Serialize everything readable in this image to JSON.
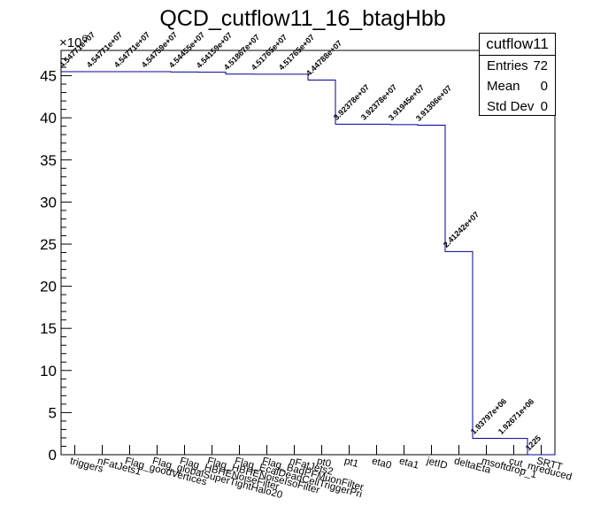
{
  "chart_data": {
    "type": "bar",
    "title": "QCD_cutflow11_16_btagHbb",
    "y_exponent_label": "×10",
    "y_exponent_power": "6",
    "ylim": [
      0,
      48
    ],
    "yticks": [
      "0",
      "5",
      "10",
      "15",
      "20",
      "25",
      "30",
      "35",
      "40",
      "45"
    ],
    "categories": [
      "triggers",
      "nFatJets1",
      "Flag_goodVertices",
      "Flag_globalSuperTightHalo2016Filter",
      "Flag_HBHENoiseFilter",
      "Flag_HBHENoiseIsoFilter",
      "Flag_EcalDeadCellTriggerPrimitiveFilter",
      "Flag_BadPFMuonFilter",
      "nFatJets2",
      "pt0",
      "pt1",
      "eta0",
      "eta1",
      "jetID",
      "deltaEta",
      "msoftdrop_1",
      "cut_mreduced",
      "SRTT"
    ],
    "category_labels": [
      "triggers",
      "nFatJets1",
      "Flag_goodVertices",
      "Flag_globalSuperTightHalo20",
      "Flag_HBHENoiseFilter",
      "Flag_HBHENoiseIsoFilter",
      "Flag_EcalDeadCellTriggerPri",
      "Flag_BadPFMuonFilter",
      "nFatJets2",
      "pt0",
      "pt1",
      "eta0",
      "eta1",
      "jetID",
      "deltaEta",
      "msoftdrop_1",
      "cut_mreduced",
      "SRTT"
    ],
    "values": [
      45477100,
      45477100,
      45477100,
      45475900,
      45445500,
      45415900,
      45186700,
      45176500,
      45176500,
      44478800,
      39237800,
      39237800,
      39194500,
      39130600,
      24124200,
      1937970,
      1926710,
      1225
    ],
    "value_labels": [
      "4.54771e+07",
      "4.54771e+07",
      "4.54771e+07",
      "4.54759e+07",
      "4.54455e+07",
      "4.54159e+07",
      "4.51867e+07",
      "4.51765e+07",
      "4.51765e+07",
      "4.44788e+07",
      "3.92378e+07",
      "3.92378e+07",
      "3.91945e+07",
      "3.91306e+07",
      "2.41242e+07",
      "1.93797e+06",
      "1.92671e+06",
      "1225"
    ],
    "colors": {
      "line": "#000099",
      "axis": "#000000",
      "text": "#000000"
    }
  },
  "stats": {
    "title": "cutflow11",
    "rows": [
      {
        "key": "Entries",
        "value": "72"
      },
      {
        "key": "Mean",
        "value": "0"
      },
      {
        "key": "Std Dev",
        "value": "0"
      }
    ]
  }
}
